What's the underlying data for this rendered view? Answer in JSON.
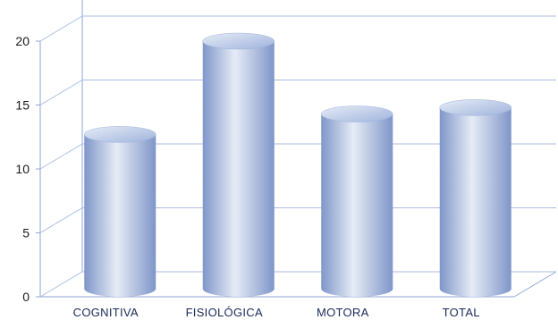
{
  "chart_data": {
    "type": "bar",
    "style": "3d-cylinder",
    "categories": [
      "COGNITIVA",
      "FISIOLÓGICA",
      "MOTORA",
      "TOTAL"
    ],
    "values": [
      12,
      19.3,
      13.6,
      14.1
    ],
    "y_ticks": [
      "0",
      "5",
      "10",
      "15",
      "20"
    ],
    "ylim": [
      0,
      20
    ],
    "grid": true,
    "legend": "none",
    "colors": {
      "bar_edge": "#7f96c9",
      "bar_mid": "#e6ecf6",
      "bar_top": "#9fb3dd",
      "grid": "#a9bde3",
      "axis": "#8fa6d6"
    }
  }
}
